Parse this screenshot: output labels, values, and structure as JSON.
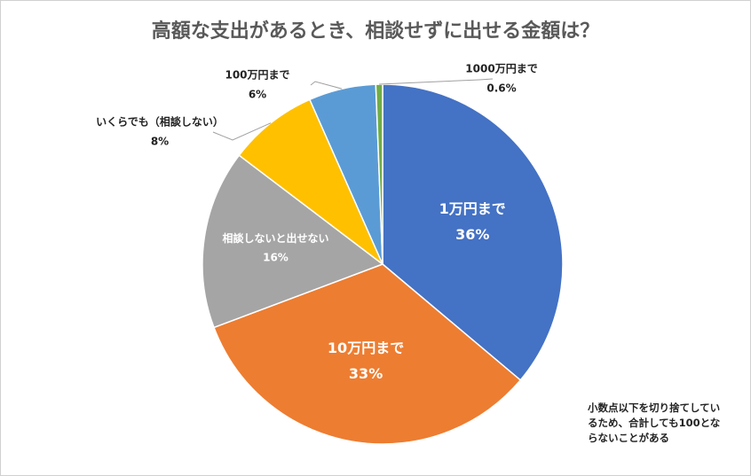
{
  "chart_data": {
    "type": "pie",
    "title": "高額な支出があるとき、相談せずに出せる金額は？",
    "categories": [
      "1万円まで",
      "10万円まで",
      "相談しないと出せない",
      "いくらでも（相談しない）",
      "100万円まで",
      "1000万円まで"
    ],
    "values": [
      36,
      33,
      16,
      8,
      6,
      0.6
    ],
    "value_labels": [
      "36%",
      "33%",
      "16%",
      "8%",
      "6%",
      "0.6%"
    ],
    "colors": [
      "#4472c4",
      "#ed7d31",
      "#a5a5a5",
      "#ffc000",
      "#5b9bd5",
      "#70ad47"
    ],
    "annotation": "小数点以下を切り捨てしているため、合計しても100とならないことがある"
  }
}
